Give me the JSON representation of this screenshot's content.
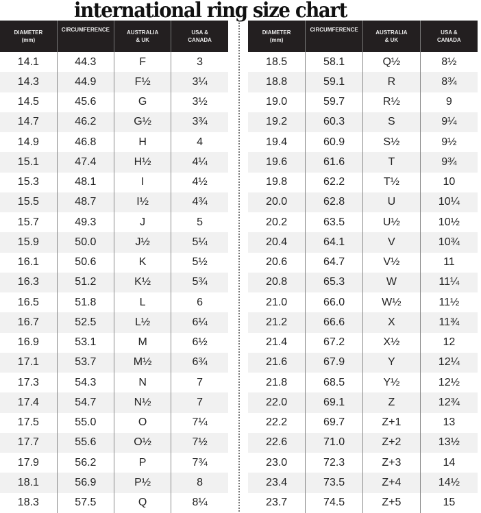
{
  "title": "international ring size chart",
  "headers": [
    "DIAMETER (mm)",
    "CIRCUMFERENCE",
    "AUSTRALIA & UK",
    "USA & CANADA"
  ],
  "left_rows": [
    [
      "14.1",
      "44.3",
      "F",
      "3"
    ],
    [
      "14.3",
      "44.9",
      "F½",
      "3¼"
    ],
    [
      "14.5",
      "45.6",
      "G",
      "3½"
    ],
    [
      "14.7",
      "46.2",
      "G½",
      "3¾"
    ],
    [
      "14.9",
      "46.8",
      "H",
      "4"
    ],
    [
      "15.1",
      "47.4",
      "H½",
      "4¼"
    ],
    [
      "15.3",
      "48.1",
      "I",
      "4½"
    ],
    [
      "15.5",
      "48.7",
      "I½",
      "4¾"
    ],
    [
      "15.7",
      "49.3",
      "J",
      "5"
    ],
    [
      "15.9",
      "50.0",
      "J½",
      "5¼"
    ],
    [
      "16.1",
      "50.6",
      "K",
      "5½"
    ],
    [
      "16.3",
      "51.2",
      "K½",
      "5¾"
    ],
    [
      "16.5",
      "51.8",
      "L",
      "6"
    ],
    [
      "16.7",
      "52.5",
      "L½",
      "6¼"
    ],
    [
      "16.9",
      "53.1",
      "M",
      "6½"
    ],
    [
      "17.1",
      "53.7",
      "M½",
      "6¾"
    ],
    [
      "17.3",
      "54.3",
      "N",
      "7"
    ],
    [
      "17.4",
      "54.7",
      "N½",
      "7"
    ],
    [
      "17.5",
      "55.0",
      "O",
      "7¼"
    ],
    [
      "17.7",
      "55.6",
      "O½",
      "7½"
    ],
    [
      "17.9",
      "56.2",
      "P",
      "7¾"
    ],
    [
      "18.1",
      "56.9",
      "P½",
      "8"
    ],
    [
      "18.3",
      "57.5",
      "Q",
      "8¼"
    ]
  ],
  "right_rows": [
    [
      "18.5",
      "58.1",
      "Q½",
      "8½"
    ],
    [
      "18.8",
      "59.1",
      "R",
      "8¾"
    ],
    [
      "19.0",
      "59.7",
      "R½",
      "9"
    ],
    [
      "19.2",
      "60.3",
      "S",
      "9¼"
    ],
    [
      "19.4",
      "60.9",
      "S½",
      "9½"
    ],
    [
      "19.6",
      "61.6",
      "T",
      "9¾"
    ],
    [
      "19.8",
      "62.2",
      "T½",
      "10"
    ],
    [
      "20.0",
      "62.8",
      "U",
      "10¼"
    ],
    [
      "20.2",
      "63.5",
      "U½",
      "10½"
    ],
    [
      "20.4",
      "64.1",
      "V",
      "10¾"
    ],
    [
      "20.6",
      "64.7",
      "V½",
      "11"
    ],
    [
      "20.8",
      "65.3",
      "W",
      "11¼"
    ],
    [
      "21.0",
      "66.0",
      "W½",
      "11½"
    ],
    [
      "21.2",
      "66.6",
      "X",
      "11¾"
    ],
    [
      "21.4",
      "67.2",
      "X½",
      "12"
    ],
    [
      "21.6",
      "67.9",
      "Y",
      "12¼"
    ],
    [
      "21.8",
      "68.5",
      "Y½",
      "12½"
    ],
    [
      "22.0",
      "69.1",
      "Z",
      "12¾"
    ],
    [
      "22.2",
      "69.7",
      "Z+1",
      "13"
    ],
    [
      "22.6",
      "71.0",
      "Z+2",
      "13½"
    ],
    [
      "23.0",
      "72.3",
      "Z+3",
      "14"
    ],
    [
      "23.4",
      "73.5",
      "Z+4",
      "14½"
    ],
    [
      "23.7",
      "74.5",
      "Z+5",
      "15"
    ]
  ],
  "colors": {
    "header_bg": "#231f20",
    "alt_row": "#f1f1f1"
  }
}
